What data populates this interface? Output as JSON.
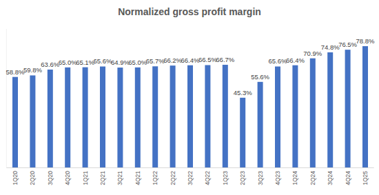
{
  "chart_data": {
    "type": "bar",
    "title": "Normalized gross profit margin",
    "categories": [
      "1Q20",
      "2Q20",
      "3Q20",
      "4Q20",
      "1Q21",
      "2Q21",
      "3Q21",
      "4Q21",
      "1Q22",
      "2Q22",
      "3Q22",
      "4Q22",
      "1Q23",
      "2Q23",
      "3Q23",
      "4Q23",
      "1Q24",
      "2Q24",
      "3Q24",
      "4Q24",
      "1Q25"
    ],
    "values": [
      58.8,
      59.8,
      63.6,
      65.0,
      65.1,
      65.6,
      64.9,
      65.0,
      65.7,
      66.2,
      66.4,
      66.5,
      66.7,
      45.3,
      55.6,
      65.6,
      66.4,
      70.9,
      74.8,
      76.5,
      78.8
    ],
    "value_labels": [
      "58.8%",
      "59.8%",
      "63.6%",
      "65.0%",
      "65.1%",
      "65.6%",
      "64.9%",
      "65.0%",
      "65.7%",
      "66.2%",
      "66.4%",
      "66.5%",
      "66.7%",
      "45.3%",
      "55.6%",
      "65.6%",
      "66.4%",
      "70.9%",
      "74.8%",
      "76.5%",
      "78.8%"
    ],
    "color": "#4472c4",
    "ylim": [
      0,
      90
    ],
    "data_labels": true,
    "grid": false,
    "tick_labels": "x"
  }
}
